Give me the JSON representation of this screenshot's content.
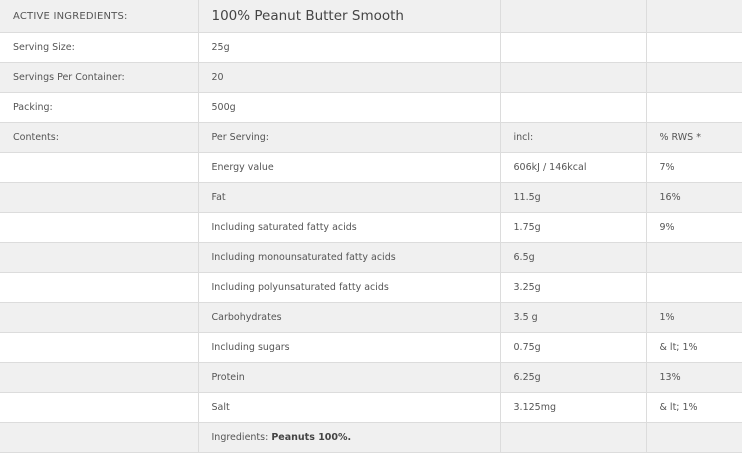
{
  "header": {
    "label": "ACTIVE INGREDIENTS:",
    "title": "100% Peanut Butter Smooth"
  },
  "info_rows": [
    {
      "label": "Serving Size:",
      "value": "25g"
    },
    {
      "label": "Servings Per Container:",
      "value": "20"
    },
    {
      "label": "Packing:",
      "value": "500g"
    }
  ],
  "contents": {
    "label": "Contents:",
    "col1": "Per Serving:",
    "col2": "incl:",
    "col3": "% RWS *"
  },
  "nutrients": [
    {
      "name": "Energy value",
      "amount": "606kJ / 146kcal",
      "rws": "7%"
    },
    {
      "name": "Fat",
      "amount": "11.5g",
      "rws": "16%"
    },
    {
      "name": "Including saturated fatty acids",
      "amount": "1.75g",
      "rws": "9%"
    },
    {
      "name": "Including monounsaturated fatty acids",
      "amount": "6.5g",
      "rws": ""
    },
    {
      "name": "Including polyunsaturated fatty acids",
      "amount": "3.25g",
      "rws": ""
    },
    {
      "name": "Carbohydrates",
      "amount": "3.5 g",
      "rws": "1%"
    },
    {
      "name": "Including sugars",
      "amount": "0.75g",
      "rws": "& lt; 1%"
    },
    {
      "name": "Protein",
      "amount": "6.25g",
      "rws": "13%"
    },
    {
      "name": "Salt",
      "amount": "3.125mg",
      "rws": "& lt; 1%"
    }
  ],
  "ingredients": {
    "label": "Ingredients:",
    "value": "Peanuts 100%."
  }
}
